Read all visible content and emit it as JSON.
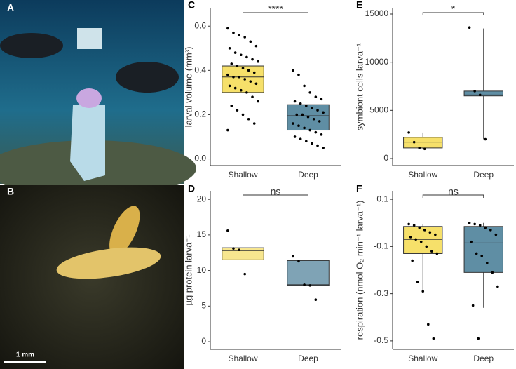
{
  "panels": [
    {
      "label": "A"
    },
    {
      "label": "B",
      "scale_bar": "1 mm"
    }
  ],
  "chart_data": [
    {
      "type": "box",
      "panel": "C",
      "ylabel": "larval volume (mm³)",
      "categories": [
        "Shallow",
        "Deep"
      ],
      "ylim": [
        -0.03,
        0.68
      ],
      "yticks": [
        {
          "value": 0,
          "label": "0.0"
        },
        0.2,
        0.4,
        0.6
      ],
      "significance": "****",
      "boxes": [
        {
          "color": "#f6e06a",
          "whisker_low": 0.13,
          "q1": 0.3,
          "median": 0.37,
          "q3": 0.42,
          "whisker_high": 0.585,
          "points": [
            0.59,
            0.57,
            0.56,
            0.55,
            0.53,
            0.51,
            0.5,
            0.48,
            0.47,
            0.46,
            0.45,
            0.44,
            0.43,
            0.42,
            0.41,
            0.4,
            0.39,
            0.38,
            0.37,
            0.37,
            0.36,
            0.35,
            0.34,
            0.33,
            0.32,
            0.31,
            0.3,
            0.28,
            0.26,
            0.24,
            0.22,
            0.2,
            0.18,
            0.16,
            0.13
          ]
        },
        {
          "color": "#5f8ea4",
          "whisker_low": 0.06,
          "q1": 0.13,
          "median": 0.195,
          "q3": 0.245,
          "whisker_high": 0.4,
          "points": [
            0.4,
            0.38,
            0.33,
            0.3,
            0.28,
            0.27,
            0.26,
            0.25,
            0.24,
            0.23,
            0.22,
            0.21,
            0.2,
            0.2,
            0.19,
            0.18,
            0.17,
            0.16,
            0.15,
            0.14,
            0.13,
            0.12,
            0.11,
            0.1,
            0.09,
            0.08,
            0.07,
            0.06,
            0.05
          ]
        }
      ]
    },
    {
      "type": "box",
      "panel": "D",
      "ylabel": "µg protein larva⁻¹",
      "categories": [
        "Shallow",
        "Deep"
      ],
      "ylim": [
        -1.08,
        21.2
      ],
      "yticks": [
        0,
        5,
        10,
        15,
        20
      ],
      "significance": "ns",
      "boxes": [
        {
          "color": "#f7e68f",
          "whisker_low": 9.5,
          "q1": 11.5,
          "median": 12.8,
          "q3": 13.2,
          "whisker_high": 15.5,
          "points": [
            15.6,
            13.1,
            12.9,
            9.5
          ]
        },
        {
          "color": "#7fa3b5",
          "whisker_low": 5.9,
          "q1": 7.9,
          "median": 8.0,
          "q3": 11.4,
          "whisker_high": 12,
          "points": [
            12,
            11.3,
            8.0,
            7.9,
            5.9
          ]
        }
      ]
    },
    {
      "type": "box",
      "panel": "E",
      "ylabel": "symbiont cells larva⁻¹",
      "categories": [
        "Shallow",
        "Deep"
      ],
      "ylim": [
        -728,
        15582
      ],
      "yticks": [
        0,
        5000,
        10000,
        15000
      ],
      "significance": "*",
      "boxes": [
        {
          "color": "#f6e06a",
          "whisker_low": 1000,
          "q1": 1100,
          "median": 1700,
          "q3": 2200,
          "whisker_high": 2700,
          "points": [
            2700,
            1700,
            1100,
            1000
          ]
        },
        {
          "color": "#5f8ea4",
          "whisker_low": 2000,
          "q1": 6500,
          "median": 6600,
          "q3": 7000,
          "whisker_high": 13500,
          "points": [
            13600,
            7000,
            6600,
            2000
          ]
        }
      ]
    },
    {
      "type": "box",
      "panel": "F",
      "ylabel": "respiration (nmol O₂ min⁻¹ larva⁻¹)",
      "categories": [
        "Shallow",
        "Deep"
      ],
      "ylim": [
        -0.536,
        0.136
      ],
      "yticks": [
        0.1,
        -0.1,
        -0.3,
        -0.5
      ],
      "significance": "ns",
      "boxes": [
        {
          "color": "#f6e06a",
          "whisker_low": -0.29,
          "q1": -0.13,
          "median": -0.07,
          "q3": -0.015,
          "whisker_high": -0.005,
          "points": [
            -0.005,
            -0.01,
            -0.02,
            -0.03,
            -0.04,
            -0.05,
            -0.06,
            -0.07,
            -0.08,
            -0.1,
            -0.12,
            -0.13,
            -0.16,
            -0.25,
            -0.29,
            -0.43,
            -0.49
          ]
        },
        {
          "color": "#5f8ea4",
          "whisker_low": -0.36,
          "q1": -0.21,
          "median": -0.085,
          "q3": -0.015,
          "whisker_high": 0,
          "points": [
            0,
            -0.005,
            -0.01,
            -0.02,
            -0.03,
            -0.05,
            -0.08,
            -0.13,
            -0.14,
            -0.17,
            -0.21,
            -0.27,
            -0.35,
            -0.49
          ]
        }
      ]
    }
  ]
}
